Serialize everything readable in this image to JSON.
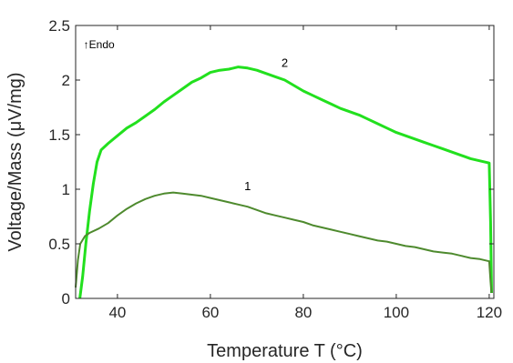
{
  "chart_data": {
    "type": "line",
    "xlabel": "Temperature T (°C)",
    "ylabel": "Voltage/Mass (μV/mg)",
    "xlim": [
      31,
      121
    ],
    "ylim": [
      0,
      2.5
    ],
    "xticks": [
      40,
      60,
      80,
      100,
      120
    ],
    "yticks": [
      0,
      0.5,
      1,
      1.5,
      2,
      2.5
    ],
    "xtick_labels": [
      "40",
      "60",
      "80",
      "100",
      "120"
    ],
    "ytick_labels": [
      "0",
      "0.5",
      "1",
      "1.5",
      "2",
      "2.5"
    ],
    "grid": false,
    "annotation": "↑Endo",
    "series": [
      {
        "name": "2",
        "color": "#22e01e",
        "x": [
          31.9,
          32.5,
          33.2,
          34.0,
          34.8,
          35.6,
          36.5,
          38,
          40,
          42,
          44,
          46,
          48,
          50,
          52,
          54,
          56,
          58,
          60,
          62,
          64,
          66,
          68,
          70,
          72,
          74,
          76,
          78,
          80,
          82,
          84,
          86,
          88,
          90,
          92,
          94,
          96,
          98,
          100,
          102,
          104,
          106,
          108,
          110,
          112,
          114,
          116,
          118,
          120,
          120.3,
          120.5
        ],
        "y": [
          0.0,
          0.2,
          0.5,
          0.8,
          1.05,
          1.25,
          1.36,
          1.42,
          1.49,
          1.56,
          1.61,
          1.67,
          1.73,
          1.8,
          1.86,
          1.92,
          1.98,
          2.02,
          2.07,
          2.09,
          2.1,
          2.12,
          2.11,
          2.09,
          2.06,
          2.03,
          2.0,
          1.95,
          1.9,
          1.86,
          1.82,
          1.78,
          1.74,
          1.71,
          1.68,
          1.64,
          1.6,
          1.56,
          1.52,
          1.49,
          1.46,
          1.43,
          1.4,
          1.37,
          1.34,
          1.31,
          1.28,
          1.26,
          1.24,
          0.7,
          0.05
        ]
      },
      {
        "name": "1",
        "color": "#4e8a2e",
        "x": [
          31.0,
          31.5,
          32.0,
          33,
          34,
          36,
          38,
          40,
          42,
          44,
          46,
          48,
          50,
          52,
          54,
          56,
          58,
          60,
          62,
          64,
          66,
          68,
          70,
          72,
          74,
          76,
          78,
          80,
          82,
          84,
          86,
          88,
          90,
          92,
          94,
          96,
          98,
          100,
          102,
          104,
          106,
          108,
          110,
          112,
          114,
          116,
          118,
          120,
          120.3,
          120.5
        ],
        "y": [
          0.1,
          0.35,
          0.5,
          0.57,
          0.6,
          0.64,
          0.69,
          0.76,
          0.82,
          0.87,
          0.91,
          0.94,
          0.96,
          0.97,
          0.96,
          0.95,
          0.94,
          0.92,
          0.9,
          0.88,
          0.86,
          0.84,
          0.81,
          0.78,
          0.76,
          0.74,
          0.72,
          0.7,
          0.67,
          0.65,
          0.63,
          0.61,
          0.59,
          0.57,
          0.55,
          0.53,
          0.52,
          0.5,
          0.48,
          0.47,
          0.45,
          0.43,
          0.42,
          0.41,
          0.39,
          0.37,
          0.36,
          0.34,
          0.15,
          0.05
        ]
      }
    ]
  }
}
